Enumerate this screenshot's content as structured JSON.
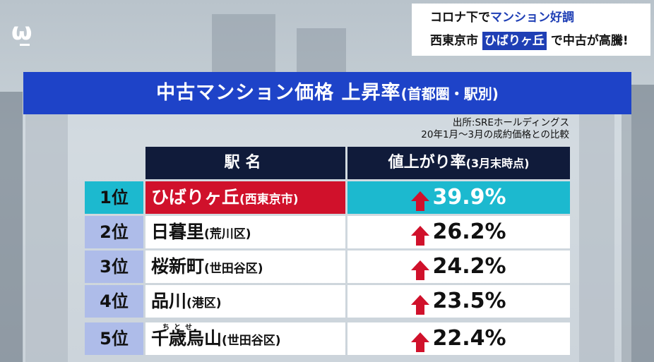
{
  "logo": {
    "glyph": "ω"
  },
  "headline": {
    "line1_prefix": "コロナ下で",
    "line1_highlight": "マンション好調",
    "line2_prefix": "西東京市",
    "line2_highlight": "ひばりヶ丘",
    "line2_suffix": "で中古が高騰!"
  },
  "panel": {
    "title": "中古マンション価格 上昇率",
    "title_sub": "(首都圏・駅別)",
    "source_line1": "出所:SREホールディングス",
    "source_line2": "20年1月〜3月の成約価格との比較"
  },
  "table": {
    "header_station": "駅名",
    "header_rate": "値上がり率",
    "header_rate_sub": "(3月末時点)",
    "rows": [
      {
        "rank": "1位",
        "station": "ひばりヶ丘",
        "ward": "(西東京市)",
        "rate": "39.9%"
      },
      {
        "rank": "2位",
        "station": "日暮里",
        "ward": "(荒川区)",
        "rate": "26.2%"
      },
      {
        "rank": "3位",
        "station": "桜新町",
        "ward": "(世田谷区)",
        "rate": "24.2%"
      },
      {
        "rank": "4位",
        "station": "品川",
        "ward": "(港区)",
        "rate": "23.5%"
      },
      {
        "rank": "5位",
        "station": "千歳烏山",
        "ward": "(世田谷区)",
        "rate": "22.4%",
        "ruby": "ちとせ"
      }
    ]
  },
  "colors": {
    "title_blue": "#1e43c8",
    "header_navy": "#101b3a",
    "highlight_cyan": "#1cb9cf",
    "highlight_red": "#d0112b",
    "rank_lavender": "#aebce9"
  }
}
